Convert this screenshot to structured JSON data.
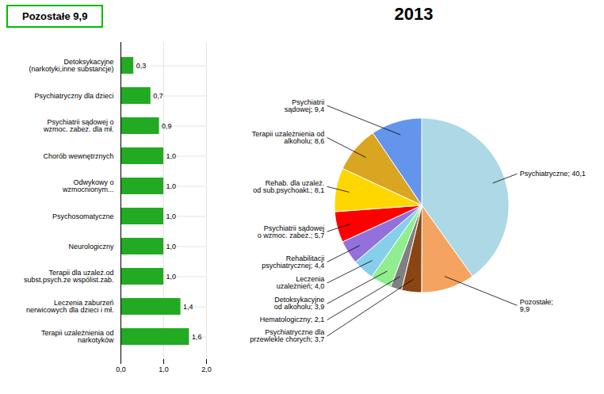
{
  "chart_data": [
    {
      "type": "bar",
      "title": "Pozostałe 9,9",
      "orientation": "horizontal",
      "categories": [
        "Detoksykacyjne\n(narkotyki,inne substancje)",
        "Psychiatryczny dla dzieci",
        "Psychiatrii sądowej o\nwzmoc. zabez. dla mł.",
        "Chorób wewnętrznych",
        "Odwykowy o\nwzmocnionym...",
        "Psychosomatyczne",
        "Neurologiczny",
        "Terapii dla uzależ.od\nsubst.psych.ze wspólist.zab.",
        "Leczenia zaburzeń\nnerwicowych dla dzieci i mł.",
        "Terapii uzależnienia od\nnarkotyków"
      ],
      "values": [
        0.3,
        0.7,
        0.9,
        1.0,
        1.0,
        1.0,
        1.0,
        1.0,
        1.4,
        1.6
      ],
      "value_labels": [
        "0,3",
        "0,7",
        "0,9",
        "1,0",
        "1,0",
        "1,0",
        "1,0",
        "1,0",
        "1,4",
        "1,6"
      ],
      "data_labels": true,
      "color": "#22aa22",
      "xlim": [
        0,
        2.0
      ],
      "xticks": [
        {
          "value": 0.0,
          "label": "0,0"
        },
        {
          "value": 1.0,
          "label": "1,0"
        },
        {
          "value": 2.0,
          "label": "2,0"
        }
      ],
      "grid": true
    },
    {
      "type": "pie",
      "title": "2013",
      "categories": [
        "Psychiatryczne; 40,1",
        "Pozostałe;\n9,9",
        "Psychiatryczne dla\nprzewlekle chorych; 3,7",
        "Hematologiczny; 2,1",
        "Detoksykacyjne\nod alkoholu; 3,9",
        "Leczenia\nuzależnień; 4,0",
        "Rehabilitacji\npsychiatrycznej; 4,4",
        "Psychiatrii sądowej\no wzmoc. zabez.; 5,7",
        "Rehab. dla uzależ.\nod sub.psychoakt.; 8,1",
        "Terapii uzależnienia od\nalkoholu; 8,6",
        "Psychiatrii\nsądowej; 9,4"
      ],
      "values": [
        40.1,
        9.9,
        3.7,
        2.1,
        3.9,
        4.0,
        4.4,
        5.7,
        8.1,
        8.6,
        9.4
      ],
      "colors": [
        "#add8e6",
        "#f4a460",
        "#8b4513",
        "#808080",
        "#90ee90",
        "#87ceeb",
        "#9370db",
        "#ff0000",
        "#ffd700",
        "#daa520",
        "#6495ed"
      ]
    }
  ]
}
